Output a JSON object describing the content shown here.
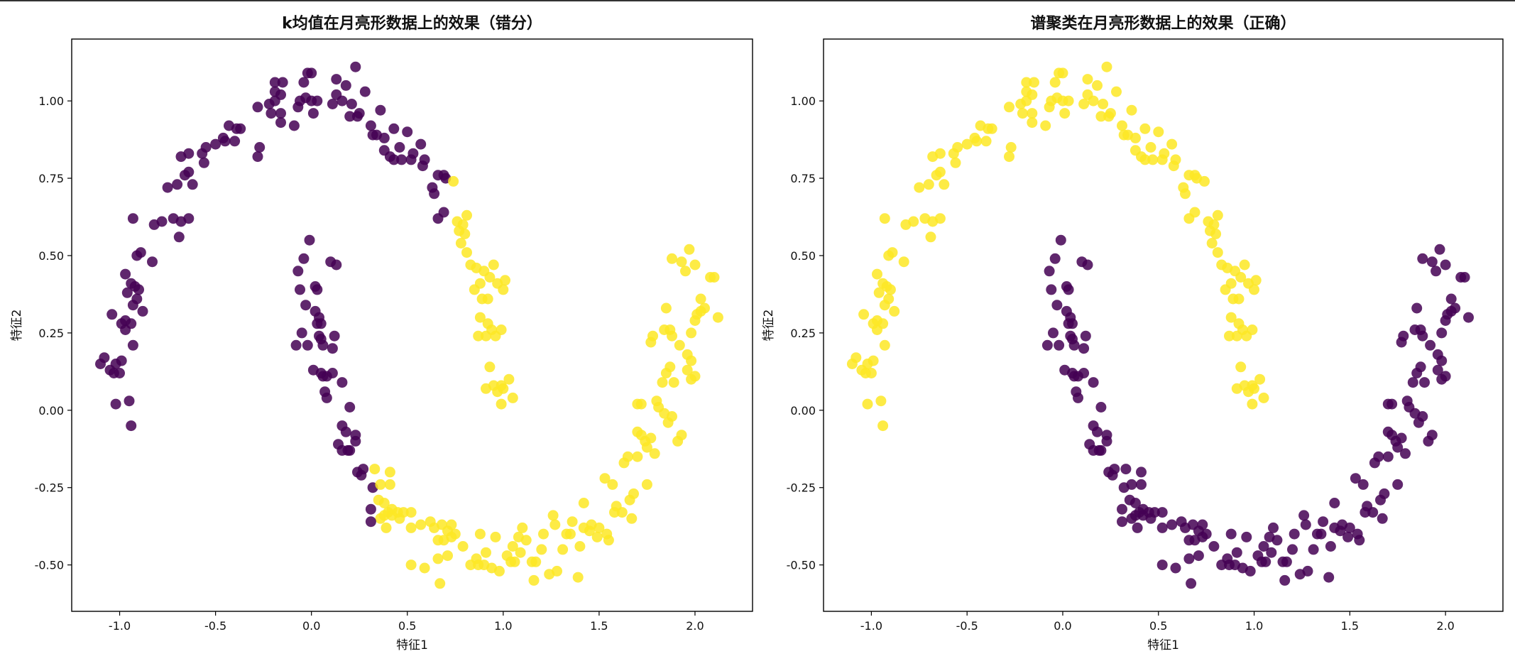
{
  "chart_data": [
    {
      "type": "scatter",
      "title": "k均值在月亮形数据上的效果（错分）",
      "xlabel": "特征1",
      "ylabel": "特征2",
      "xlim": [
        -1.25,
        2.3
      ],
      "ylim": [
        -0.65,
        1.2
      ],
      "xticks": [
        -1.0,
        -0.5,
        0.0,
        0.5,
        1.0,
        1.5,
        2.0
      ],
      "xtick_labels": [
        "-1.0",
        "-0.5",
        "0.0",
        "0.5",
        "1.0",
        "1.5",
        "2.0"
      ],
      "yticks": [
        -0.5,
        -0.25,
        0.0,
        0.25,
        0.5,
        0.75,
        1.0
      ],
      "ytick_labels": [
        "-0.50",
        "-0.25",
        "0.00",
        "0.25",
        "0.50",
        "0.75",
        "1.00"
      ],
      "grid": false,
      "colors": {
        "cluster_0": "#440154",
        "cluster_1": "#fde725"
      },
      "clustering": "x_threshold",
      "threshold": {
        "cut_x": 0.72,
        "lower_y": -0.12,
        "upper_x": 0.32
      }
    },
    {
      "type": "scatter",
      "title": "谱聚类在月亮形数据上的效果（正确）",
      "xlabel": "特征1",
      "ylabel": "特征2",
      "xlim": [
        -1.25,
        2.3
      ],
      "ylim": [
        -0.65,
        1.2
      ],
      "xticks": [
        -1.0,
        -0.5,
        0.0,
        0.5,
        1.0,
        1.5,
        2.0
      ],
      "xtick_labels": [
        "-1.0",
        "-0.5",
        "0.0",
        "0.5",
        "1.0",
        "1.5",
        "2.0"
      ],
      "yticks": [
        -0.5,
        -0.25,
        0.0,
        0.25,
        0.5,
        0.75,
        1.0
      ],
      "ytick_labels": [
        "-0.50",
        "-0.25",
        "0.00",
        "0.25",
        "0.50",
        "0.75",
        "1.00"
      ],
      "grid": false,
      "colors": {
        "cluster_0": "#440154",
        "cluster_1": "#fde725"
      },
      "clustering": "by_moon"
    }
  ],
  "points": {
    "upper_moon": [
      [
        -1.08,
        0.17
      ],
      [
        -1.1,
        0.15
      ],
      [
        -1.05,
        0.13
      ],
      [
        -1.03,
        0.12
      ],
      [
        -1.0,
        0.12
      ],
      [
        -1.02,
        0.15
      ],
      [
        -0.99,
        0.16
      ],
      [
        -1.02,
        0.02
      ],
      [
        -0.95,
        0.03
      ],
      [
        -0.94,
        -0.05
      ],
      [
        -1.04,
        0.31
      ],
      [
        -0.99,
        0.28
      ],
      [
        -0.97,
        0.26
      ],
      [
        -0.94,
        0.28
      ],
      [
        -0.93,
        0.21
      ],
      [
        -0.97,
        0.29
      ],
      [
        -0.93,
        0.34
      ],
      [
        -0.91,
        0.36
      ],
      [
        -0.96,
        0.38
      ],
      [
        -0.92,
        0.4
      ],
      [
        -0.97,
        0.44
      ],
      [
        -0.94,
        0.41
      ],
      [
        -0.9,
        0.39
      ],
      [
        -0.88,
        0.32
      ],
      [
        -0.91,
        0.5
      ],
      [
        -0.89,
        0.51
      ],
      [
        -0.83,
        0.48
      ],
      [
        -0.93,
        0.62
      ],
      [
        -0.82,
        0.6
      ],
      [
        -0.78,
        0.61
      ],
      [
        -0.72,
        0.62
      ],
      [
        -0.69,
        0.56
      ],
      [
        -0.68,
        0.61
      ],
      [
        -0.64,
        0.62
      ],
      [
        -0.75,
        0.72
      ],
      [
        -0.7,
        0.73
      ],
      [
        -0.66,
        0.76
      ],
      [
        -0.62,
        0.73
      ],
      [
        -0.64,
        0.77
      ],
      [
        -0.68,
        0.82
      ],
      [
        -0.64,
        0.83
      ],
      [
        -0.56,
        0.8
      ],
      [
        -0.57,
        0.83
      ],
      [
        -0.55,
        0.85
      ],
      [
        -0.5,
        0.86
      ],
      [
        -0.45,
        0.87
      ],
      [
        -0.4,
        0.87
      ],
      [
        -0.46,
        0.88
      ],
      [
        -0.43,
        0.92
      ],
      [
        -0.39,
        0.91
      ],
      [
        -0.37,
        0.91
      ],
      [
        -0.28,
        0.82
      ],
      [
        -0.27,
        0.85
      ],
      [
        -0.28,
        0.98
      ],
      [
        -0.22,
        0.99
      ],
      [
        -0.19,
        1.0
      ],
      [
        -0.19,
        1.03
      ],
      [
        -0.16,
        1.02
      ],
      [
        -0.15,
        1.06
      ],
      [
        -0.19,
        1.06
      ],
      [
        -0.21,
        0.96
      ],
      [
        -0.16,
        0.93
      ],
      [
        -0.16,
        0.96
      ],
      [
        -0.09,
        0.92
      ],
      [
        -0.07,
        0.98
      ],
      [
        -0.06,
        1.0
      ],
      [
        -0.03,
        1.01
      ],
      [
        -0.04,
        1.06
      ],
      [
        -0.02,
        1.09
      ],
      [
        0.0,
        1.09
      ],
      [
        0.0,
        1.0
      ],
      [
        0.01,
        0.96
      ],
      [
        0.03,
        1.0
      ],
      [
        0.11,
        0.99
      ],
      [
        0.13,
        1.02
      ],
      [
        0.13,
        1.07
      ],
      [
        0.18,
        1.05
      ],
      [
        0.16,
        1.0
      ],
      [
        0.21,
        0.99
      ],
      [
        0.23,
        1.11
      ],
      [
        0.2,
        0.95
      ],
      [
        0.24,
        0.95
      ],
      [
        0.25,
        0.96
      ],
      [
        0.28,
        1.03
      ],
      [
        0.31,
        0.92
      ],
      [
        0.32,
        0.89
      ],
      [
        0.34,
        0.89
      ],
      [
        0.38,
        0.88
      ],
      [
        0.38,
        0.84
      ],
      [
        0.36,
        0.97
      ],
      [
        0.41,
        0.82
      ],
      [
        0.43,
        0.81
      ],
      [
        0.43,
        0.91
      ],
      [
        0.46,
        0.85
      ],
      [
        0.5,
        0.9
      ],
      [
        0.47,
        0.81
      ],
      [
        0.52,
        0.81
      ],
      [
        0.53,
        0.83
      ],
      [
        0.57,
        0.86
      ],
      [
        0.59,
        0.81
      ],
      [
        0.58,
        0.79
      ],
      [
        0.63,
        0.72
      ],
      [
        0.64,
        0.7
      ],
      [
        0.66,
        0.76
      ],
      [
        0.69,
        0.76
      ],
      [
        0.7,
        0.75
      ],
      [
        0.74,
        0.74
      ],
      [
        0.69,
        0.64
      ],
      [
        0.66,
        0.62
      ],
      [
        0.76,
        0.61
      ],
      [
        0.77,
        0.58
      ],
      [
        0.79,
        0.6
      ],
      [
        0.8,
        0.57
      ],
      [
        0.81,
        0.63
      ],
      [
        0.78,
        0.54
      ],
      [
        0.81,
        0.51
      ],
      [
        0.83,
        0.47
      ],
      [
        0.86,
        0.46
      ],
      [
        0.88,
        0.41
      ],
      [
        0.85,
        0.39
      ],
      [
        0.89,
        0.36
      ],
      [
        0.9,
        0.45
      ],
      [
        0.93,
        0.43
      ],
      [
        0.95,
        0.47
      ],
      [
        0.97,
        0.41
      ],
      [
        1.01,
        0.42
      ],
      [
        1.0,
        0.39
      ],
      [
        0.92,
        0.36
      ],
      [
        0.88,
        0.3
      ],
      [
        0.92,
        0.28
      ],
      [
        0.94,
        0.26
      ],
      [
        0.96,
        0.24
      ],
      [
        0.99,
        0.26
      ],
      [
        0.91,
        0.24
      ],
      [
        0.87,
        0.24
      ],
      [
        0.93,
        0.14
      ],
      [
        0.91,
        0.07
      ],
      [
        0.95,
        0.08
      ],
      [
        0.97,
        0.06
      ],
      [
        0.99,
        0.08
      ],
      [
        1.0,
        0.07
      ],
      [
        1.03,
        0.1
      ],
      [
        1.05,
        0.04
      ],
      [
        0.99,
        0.02
      ]
    ],
    "lower_moon": [
      [
        -0.01,
        0.55
      ],
      [
        -0.04,
        0.49
      ],
      [
        -0.07,
        0.45
      ],
      [
        0.1,
        0.48
      ],
      [
        0.13,
        0.47
      ],
      [
        0.02,
        0.4
      ],
      [
        0.03,
        0.39
      ],
      [
        -0.06,
        0.39
      ],
      [
        -0.03,
        0.34
      ],
      [
        0.02,
        0.32
      ],
      [
        0.04,
        0.3
      ],
      [
        0.03,
        0.28
      ],
      [
        0.05,
        0.28
      ],
      [
        -0.05,
        0.25
      ],
      [
        -0.08,
        0.21
      ],
      [
        -0.02,
        0.21
      ],
      [
        0.04,
        0.24
      ],
      [
        0.05,
        0.23
      ],
      [
        0.06,
        0.21
      ],
      [
        0.12,
        0.24
      ],
      [
        0.11,
        0.2
      ],
      [
        0.01,
        0.13
      ],
      [
        0.05,
        0.12
      ],
      [
        0.06,
        0.11
      ],
      [
        0.08,
        0.11
      ],
      [
        0.11,
        0.12
      ],
      [
        0.07,
        0.06
      ],
      [
        0.08,
        0.04
      ],
      [
        0.16,
        0.09
      ],
      [
        0.2,
        0.01
      ],
      [
        0.16,
        -0.05
      ],
      [
        0.18,
        -0.07
      ],
      [
        0.23,
        -0.08
      ],
      [
        0.23,
        -0.1
      ],
      [
        0.14,
        -0.11
      ],
      [
        0.16,
        -0.13
      ],
      [
        0.19,
        -0.13
      ],
      [
        0.2,
        -0.13
      ],
      [
        0.24,
        -0.2
      ],
      [
        0.26,
        -0.21
      ],
      [
        0.27,
        -0.19
      ],
      [
        0.32,
        -0.25
      ],
      [
        0.33,
        -0.19
      ],
      [
        0.36,
        -0.24
      ],
      [
        0.41,
        -0.2
      ],
      [
        0.41,
        -0.24
      ],
      [
        0.31,
        -0.32
      ],
      [
        0.35,
        -0.29
      ],
      [
        0.38,
        -0.3
      ],
      [
        0.4,
        -0.33
      ],
      [
        0.42,
        -0.32
      ],
      [
        0.36,
        -0.35
      ],
      [
        0.38,
        -0.34
      ],
      [
        0.42,
        -0.34
      ],
      [
        0.45,
        -0.33
      ],
      [
        0.48,
        -0.33
      ],
      [
        0.52,
        -0.33
      ],
      [
        0.31,
        -0.36
      ],
      [
        0.39,
        -0.38
      ],
      [
        0.46,
        -0.35
      ],
      [
        0.52,
        -0.38
      ],
      [
        0.57,
        -0.37
      ],
      [
        0.62,
        -0.36
      ],
      [
        0.64,
        -0.38
      ],
      [
        0.68,
        -0.37
      ],
      [
        0.73,
        -0.37
      ],
      [
        0.52,
        -0.5
      ],
      [
        0.59,
        -0.51
      ],
      [
        0.66,
        -0.42
      ],
      [
        0.66,
        -0.48
      ],
      [
        0.67,
        -0.56
      ],
      [
        0.69,
        -0.42
      ],
      [
        0.71,
        -0.39
      ],
      [
        0.71,
        -0.47
      ],
      [
        0.73,
        -0.41
      ],
      [
        0.75,
        -0.4
      ],
      [
        0.79,
        -0.44
      ],
      [
        0.83,
        -0.5
      ],
      [
        0.86,
        -0.48
      ],
      [
        0.87,
        -0.5
      ],
      [
        0.88,
        -0.4
      ],
      [
        0.91,
        -0.46
      ],
      [
        0.9,
        -0.5
      ],
      [
        0.94,
        -0.51
      ],
      [
        0.98,
        -0.52
      ],
      [
        0.96,
        -0.41
      ],
      [
        1.02,
        -0.47
      ],
      [
        1.04,
        -0.49
      ],
      [
        1.05,
        -0.44
      ],
      [
        1.06,
        -0.49
      ],
      [
        1.08,
        -0.41
      ],
      [
        1.09,
        -0.46
      ],
      [
        1.1,
        -0.38
      ],
      [
        1.12,
        -0.42
      ],
      [
        1.15,
        -0.49
      ],
      [
        1.17,
        -0.49
      ],
      [
        1.16,
        -0.55
      ],
      [
        1.2,
        -0.45
      ],
      [
        1.21,
        -0.4
      ],
      [
        1.24,
        -0.53
      ],
      [
        1.26,
        -0.34
      ],
      [
        1.27,
        -0.37
      ],
      [
        1.28,
        -0.52
      ],
      [
        1.31,
        -0.45
      ],
      [
        1.33,
        -0.4
      ],
      [
        1.35,
        -0.4
      ],
      [
        1.36,
        -0.36
      ],
      [
        1.39,
        -0.54
      ],
      [
        1.4,
        -0.44
      ],
      [
        1.42,
        -0.38
      ],
      [
        1.42,
        -0.3
      ],
      [
        1.45,
        -0.39
      ],
      [
        1.46,
        -0.37
      ],
      [
        1.49,
        -0.41
      ],
      [
        1.5,
        -0.38
      ],
      [
        1.54,
        -0.4
      ],
      [
        1.55,
        -0.42
      ],
      [
        1.53,
        -0.22
      ],
      [
        1.57,
        -0.24
      ],
      [
        1.59,
        -0.31
      ],
      [
        1.58,
        -0.33
      ],
      [
        1.62,
        -0.33
      ],
      [
        1.63,
        -0.17
      ],
      [
        1.65,
        -0.15
      ],
      [
        1.66,
        -0.29
      ],
      [
        1.68,
        -0.27
      ],
      [
        1.67,
        -0.35
      ],
      [
        1.7,
        -0.07
      ],
      [
        1.7,
        -0.15
      ],
      [
        1.72,
        -0.08
      ],
      [
        1.74,
        -0.1
      ],
      [
        1.75,
        -0.12
      ],
      [
        1.75,
        -0.24
      ],
      [
        1.77,
        -0.09
      ],
      [
        1.79,
        -0.14
      ],
      [
        1.7,
        0.02
      ],
      [
        1.72,
        0.02
      ],
      [
        1.8,
        0.03
      ],
      [
        1.81,
        0.01
      ],
      [
        1.84,
        -0.01
      ],
      [
        1.86,
        -0.04
      ],
      [
        1.88,
        -0.02
      ],
      [
        1.91,
        -0.1
      ],
      [
        1.93,
        -0.08
      ],
      [
        1.77,
        0.22
      ],
      [
        1.78,
        0.24
      ],
      [
        1.84,
        0.26
      ],
      [
        1.85,
        0.33
      ],
      [
        1.87,
        0.26
      ],
      [
        1.88,
        0.24
      ],
      [
        1.92,
        0.21
      ],
      [
        1.83,
        0.09
      ],
      [
        1.85,
        0.12
      ],
      [
        1.87,
        0.14
      ],
      [
        1.89,
        0.09
      ],
      [
        1.96,
        0.13
      ],
      [
        1.98,
        0.16
      ],
      [
        1.96,
        0.18
      ],
      [
        1.98,
        0.1
      ],
      [
        2.0,
        0.11
      ],
      [
        1.88,
        0.49
      ],
      [
        1.93,
        0.48
      ],
      [
        1.95,
        0.45
      ],
      [
        1.97,
        0.52
      ],
      [
        2.0,
        0.47
      ],
      [
        2.03,
        0.36
      ],
      [
        2.05,
        0.33
      ],
      [
        2.01,
        0.31
      ],
      [
        2.0,
        0.29
      ],
      [
        1.98,
        0.25
      ],
      [
        2.08,
        0.43
      ],
      [
        2.1,
        0.43
      ],
      [
        2.12,
        0.3
      ],
      [
        2.03,
        0.32
      ]
    ]
  }
}
